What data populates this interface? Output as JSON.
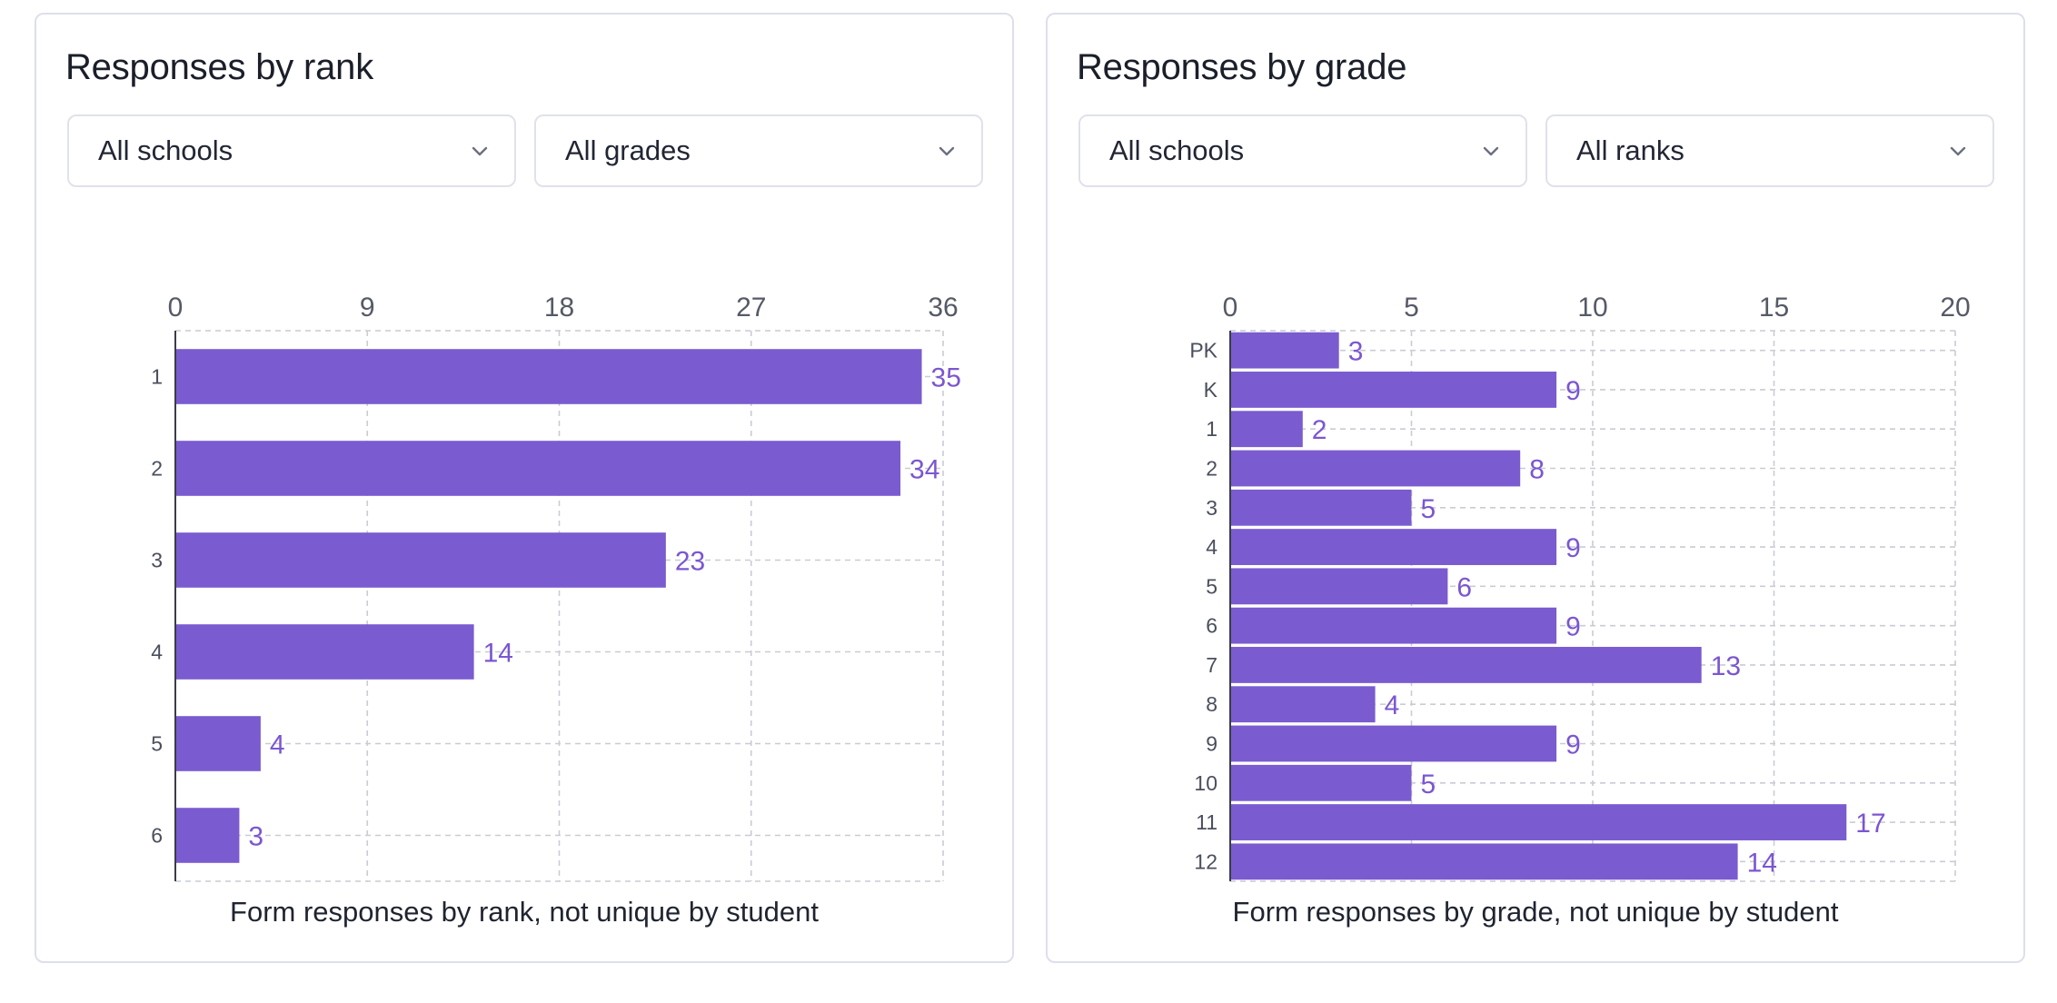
{
  "colors": {
    "bar": "#7a5bd0",
    "label": "#7b56d1",
    "grid": "#c9ccd4"
  },
  "panels": [
    {
      "title": "Responses by rank",
      "filters": [
        {
          "value": "All schools",
          "icon": "chevron-down-icon"
        },
        {
          "value": "All grades",
          "icon": "chevron-down-icon"
        }
      ],
      "caption": "Form responses by rank, not unique by student"
    },
    {
      "title": "Responses by grade",
      "filters": [
        {
          "value": "All schools",
          "icon": "chevron-down-icon"
        },
        {
          "value": "All ranks",
          "icon": "chevron-down-icon"
        }
      ],
      "caption": "Form responses by grade, not unique by student"
    }
  ],
  "chart_data": [
    {
      "type": "bar",
      "orientation": "horizontal",
      "title": "Responses by rank",
      "categories": [
        "1",
        "2",
        "3",
        "4",
        "5",
        "6"
      ],
      "values": [
        35,
        34,
        23,
        14,
        4,
        3
      ],
      "xticks": [
        0,
        9,
        18,
        27,
        36
      ],
      "xlim": [
        0,
        36
      ],
      "axis_position": "top",
      "grid": true
    },
    {
      "type": "bar",
      "orientation": "horizontal",
      "title": "Responses by grade",
      "categories": [
        "PK",
        "K",
        "1",
        "2",
        "3",
        "4",
        "5",
        "6",
        "7",
        "8",
        "9",
        "10",
        "11",
        "12"
      ],
      "values": [
        3,
        9,
        2,
        8,
        5,
        9,
        6,
        9,
        13,
        4,
        9,
        5,
        17,
        14
      ],
      "xticks": [
        0,
        5,
        10,
        15,
        20
      ],
      "xlim": [
        0,
        20
      ],
      "axis_position": "top",
      "grid": true
    }
  ]
}
